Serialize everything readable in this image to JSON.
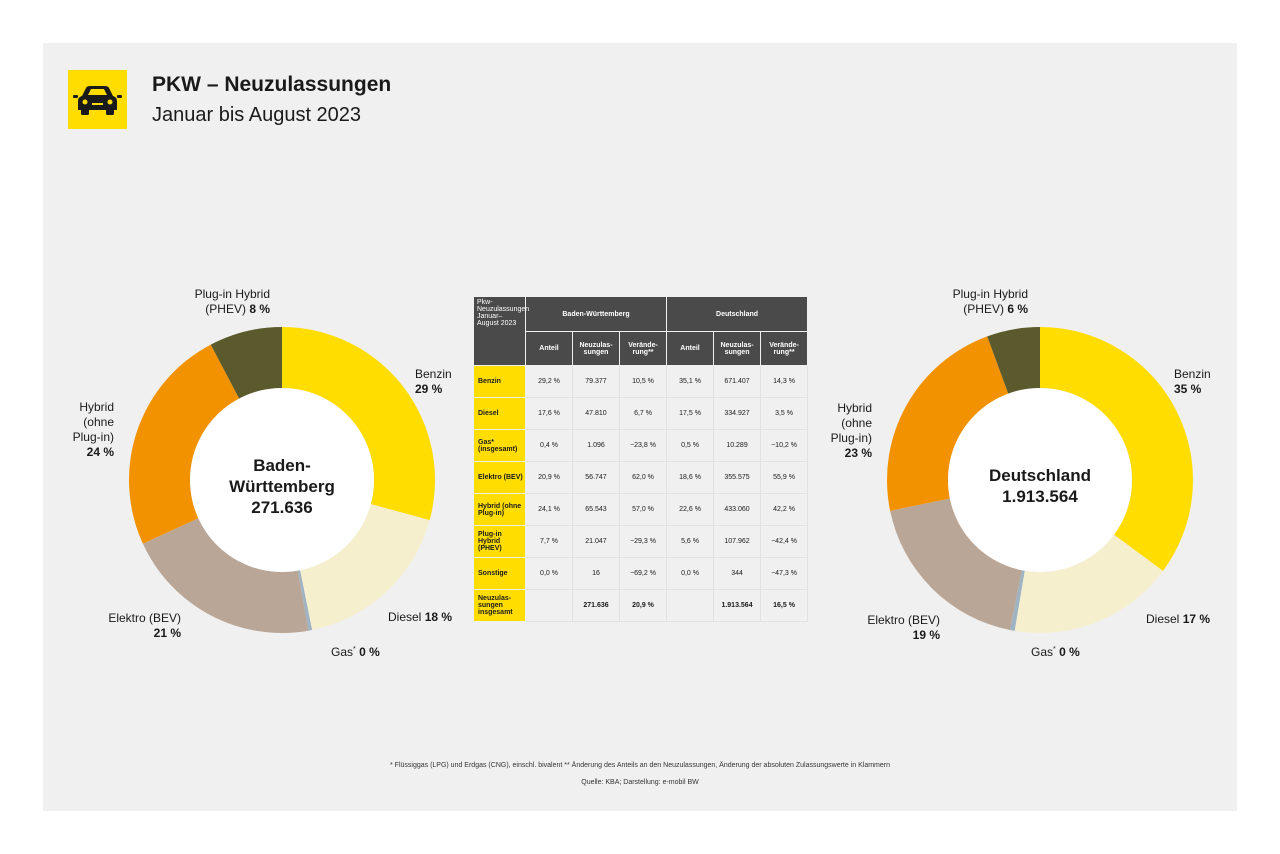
{
  "header": {
    "title": "PKW – Neuzulassungen",
    "subtitle": "Januar bis August 2023"
  },
  "colors": {
    "Benzin": "#ffdd00",
    "Diesel": "#f5efce",
    "Gas": "#9fb3c2",
    "Elektro": "#baa696",
    "Hybrid": "#f39200",
    "PHEV": "#5a5a2c",
    "accent": "#ffdd00"
  },
  "chart_data": [
    {
      "type": "pie",
      "center_title": [
        "Baden-",
        "Württemberg"
      ],
      "center_value": "271.636",
      "categories": [
        "Benzin",
        "Diesel",
        "Gas",
        "Elektro",
        "Hybrid",
        "PHEV"
      ],
      "values": [
        29.2,
        17.6,
        0.4,
        20.9,
        24.1,
        7.7
      ],
      "labels": [
        {
          "name": "Benzin",
          "pct": "29 %"
        },
        {
          "name": "Diesel",
          "pct": "18 %"
        },
        {
          "name": "Gas",
          "sup": "*",
          "pct": "0 %"
        },
        {
          "name": "Elektro (BEV)",
          "pct": "21 %"
        },
        {
          "lines": [
            "Hybrid",
            "(ohne",
            "Plug-in)"
          ],
          "pct": "24 %"
        },
        {
          "name": "Plug-in Hybrid",
          "name2": "(PHEV)",
          "pct": "8 %"
        }
      ]
    },
    {
      "type": "pie",
      "center_title": [
        "Deutschland"
      ],
      "center_value": "1.913.564",
      "categories": [
        "Benzin",
        "Diesel",
        "Gas",
        "Elektro",
        "Hybrid",
        "PHEV"
      ],
      "values": [
        35.1,
        17.5,
        0.5,
        18.6,
        22.6,
        5.6
      ],
      "labels": [
        {
          "name": "Benzin",
          "pct": "35 %"
        },
        {
          "name": "Diesel",
          "pct": "17 %"
        },
        {
          "name": "Gas",
          "sup": "*",
          "pct": "0 %"
        },
        {
          "name": "Elektro (BEV)",
          "pct": "19 %"
        },
        {
          "lines": [
            "Hybrid",
            "(ohne",
            "Plug-in)"
          ],
          "pct": "23 %"
        },
        {
          "name": "Plug-in Hybrid",
          "name2": "(PHEV)",
          "pct": "6 %"
        }
      ]
    },
    {
      "type": "table",
      "corner": "Pkw-Neuzulassungen Januar–August 2023",
      "groups": [
        "Baden-Württemberg",
        "Deutschland"
      ],
      "columns": [
        "Anteil",
        "Neuzulas-sungen",
        "Verände-rung**",
        "Anteil",
        "Neuzulas-sungen",
        "Verände-rung**"
      ],
      "rows": [
        {
          "label": "Benzin",
          "cells": [
            "29,2 %",
            "79.377",
            "10,5 %",
            "35,1 %",
            "671.407",
            "14,3 %"
          ]
        },
        {
          "label": "Diesel",
          "cells": [
            "17,6 %",
            "47.810",
            "6,7 %",
            "17,5 %",
            "334.927",
            "3,5 %"
          ]
        },
        {
          "label": "Gas* (insgesamt)",
          "cells": [
            "0,4 %",
            "1.096",
            "−23,8 %",
            "0,5 %",
            "10.289",
            "−10,2 %"
          ]
        },
        {
          "label": "Elektro (BEV)",
          "cells": [
            "20,9 %",
            "56.747",
            "62,0 %",
            "18,6 %",
            "355.575",
            "55,9 %"
          ]
        },
        {
          "label": "Hybrid (ohne Plug-in)",
          "cells": [
            "24,1 %",
            "65.543",
            "57,0 %",
            "22,6 %",
            "433.060",
            "42,2 %"
          ]
        },
        {
          "label": "Plug-in Hybrid (PHEV)",
          "cells": [
            "7,7 %",
            "21.047",
            "−29,3 %",
            "5,6 %",
            "107.962",
            "−42,4 %"
          ]
        },
        {
          "label": "Sonstige",
          "cells": [
            "0,0 %",
            "16",
            "−69,2 %",
            "0,0 %",
            "344",
            "−47,3 %"
          ]
        },
        {
          "label": "Neuzulas-sungen insgesamt",
          "cells": [
            "",
            "271.636",
            "20,9 %",
            "",
            "1.913.564",
            "16,5 %"
          ]
        }
      ]
    }
  ],
  "footnote": "* Flüssiggas (LPG) und Erdgas (CNG), einschl. bivalent ** Änderung des Anteils an den Neuzulassungen, Änderung der absoluten Zulassungswerte in Klammern",
  "source": "Quelle: KBA; Darstellung: e-mobil BW"
}
